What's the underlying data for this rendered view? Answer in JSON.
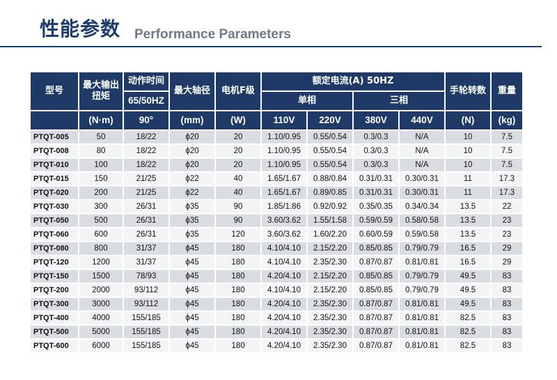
{
  "header": {
    "title_cn": "性能参数",
    "title_en": "Performance Parameters"
  },
  "table": {
    "headers": {
      "model": "型号",
      "torque": "最大输出扭矩",
      "action_time": "动作时间",
      "action_time_sub": "65/50HZ",
      "shaft": "最大轴径",
      "motor": "电机F级",
      "current": "额定电流(A) 50HZ",
      "single_phase": "单相",
      "three_phase": "三相",
      "handwheel": "手轮转数",
      "weight": "重量"
    },
    "units": {
      "torque": "(N·m)",
      "action_time": "90°",
      "shaft": "(mm)",
      "motor": "(W)",
      "v110": "110V",
      "v220": "220V",
      "v380": "380V",
      "v440": "440V",
      "handwheel": "(N)",
      "weight": "(kg)"
    },
    "rows": [
      {
        "model": "PTQT-005",
        "torque": "50",
        "time": "18/22",
        "shaft": "ϕ20",
        "motor": "20",
        "v110": "1.10/0.95",
        "v220": "0.55/0.54",
        "v380": "0.3/0.3",
        "v440": "N/A",
        "hand": "10",
        "weight": "7.5"
      },
      {
        "model": "PTQT-008",
        "torque": "80",
        "time": "18/22",
        "shaft": "ϕ20",
        "motor": "20",
        "v110": "1.10/0.95",
        "v220": "0.55/0.54",
        "v380": "0.3/0.3",
        "v440": "N/A",
        "hand": "10",
        "weight": "7.5"
      },
      {
        "model": "PTQT-010",
        "torque": "100",
        "time": "18/22",
        "shaft": "ϕ20",
        "motor": "20",
        "v110": "1.10/0.95",
        "v220": "0.55/0.54",
        "v380": "0.3/0.3",
        "v440": "N/A",
        "hand": "10",
        "weight": "7.5"
      },
      {
        "model": "PTQT-015",
        "torque": "150",
        "time": "21/25",
        "shaft": "ϕ22",
        "motor": "40",
        "v110": "1.65/1.67",
        "v220": "0.88/0.84",
        "v380": "0.31/0.31",
        "v440": "0.30/0.31",
        "hand": "11",
        "weight": "17.3"
      },
      {
        "model": "PTQT-020",
        "torque": "200",
        "time": "21/25",
        "shaft": "ϕ22",
        "motor": "40",
        "v110": "1.65/1.67",
        "v220": "0.89/0.85",
        "v380": "0.31/0.31",
        "v440": "0.30/0.31",
        "hand": "11",
        "weight": "17.3"
      },
      {
        "model": "PTQT-030",
        "torque": "300",
        "time": "26/31",
        "shaft": "ϕ35",
        "motor": "90",
        "v110": "1.85/1.86",
        "v220": "0.92/0.92",
        "v380": "0.35/0.35",
        "v440": "0.34/0.34",
        "hand": "13.5",
        "weight": "22"
      },
      {
        "model": "PTQT-050",
        "torque": "500",
        "time": "26/31",
        "shaft": "ϕ35",
        "motor": "90",
        "v110": "3.60/3.62",
        "v220": "1.55/1.58",
        "v380": "0.59/0.59",
        "v440": "0.58/0.58",
        "hand": "13.5",
        "weight": "23"
      },
      {
        "model": "PTQT-060",
        "torque": "600",
        "time": "26/31",
        "shaft": "ϕ35",
        "motor": "120",
        "v110": "3.60/3.62",
        "v220": "1.60/2.20",
        "v380": "0.60/0.59",
        "v440": "0.59/0.58",
        "hand": "13.5",
        "weight": "23"
      },
      {
        "model": "PTQT-080",
        "torque": "800",
        "time": "31/37",
        "shaft": "ϕ45",
        "motor": "180",
        "v110": "4.10/4.10",
        "v220": "2.15/2.20",
        "v380": "0.85/0.85",
        "v440": "0.79/0.79",
        "hand": "16.5",
        "weight": "29"
      },
      {
        "model": "PTQT-120",
        "torque": "1200",
        "time": "31/37",
        "shaft": "ϕ45",
        "motor": "180",
        "v110": "4.10/4.10",
        "v220": "2.35/2.30",
        "v380": "0.87/0.87",
        "v440": "0.81/0.81",
        "hand": "16.5",
        "weight": "29"
      },
      {
        "model": "PTQT-150",
        "torque": "1500",
        "time": "78/93",
        "shaft": "ϕ45",
        "motor": "180",
        "v110": "4.20/4.10",
        "v220": "2.15/2.20",
        "v380": "0.85/0.85",
        "v440": "0.79/0.79",
        "hand": "49.5",
        "weight": "83"
      },
      {
        "model": "PTQT-200",
        "torque": "2000",
        "time": "93/112",
        "shaft": "ϕ45",
        "motor": "180",
        "v110": "4.10/4.10",
        "v220": "2.15/2.20",
        "v380": "0.85/0.85",
        "v440": "0.79/0.79",
        "hand": "49.5",
        "weight": "83"
      },
      {
        "model": "PTQT-300",
        "torque": "3000",
        "time": "93/112",
        "shaft": "ϕ45",
        "motor": "180",
        "v110": "4.20/4.10",
        "v220": "2.35/2.30",
        "v380": "0.87/0.87",
        "v440": "0.81/0.81",
        "hand": "49.5",
        "weight": "83"
      },
      {
        "model": "PTQT-400",
        "torque": "4000",
        "time": "155/185",
        "shaft": "ϕ45",
        "motor": "180",
        "v110": "4.20/4.10",
        "v220": "2.35/2.30",
        "v380": "0.87/0.87",
        "v440": "0.81/0.81",
        "hand": "82.5",
        "weight": "83"
      },
      {
        "model": "PTQT-500",
        "torque": "5000",
        "time": "155/185",
        "shaft": "ϕ45",
        "motor": "180",
        "v110": "4.20/4.10",
        "v220": "2.35/2.30",
        "v380": "0.87/0.87",
        "v440": "0.81/0.81",
        "hand": "82.5",
        "weight": "83"
      },
      {
        "model": "PTQT-600",
        "torque": "6000",
        "time": "155/185",
        "shaft": "ϕ45",
        "motor": "180",
        "v110": "4.20/4.10",
        "v220": "2.35/2.30",
        "v380": "0.87/0.87",
        "v440": "0.81/0.81",
        "hand": "82.5",
        "weight": "83"
      }
    ]
  },
  "colors": {
    "header_bg": "#1f3a67",
    "title": "#1d3d6f",
    "row_odd": "#d9dce1",
    "row_even": "#f3f4f6"
  }
}
